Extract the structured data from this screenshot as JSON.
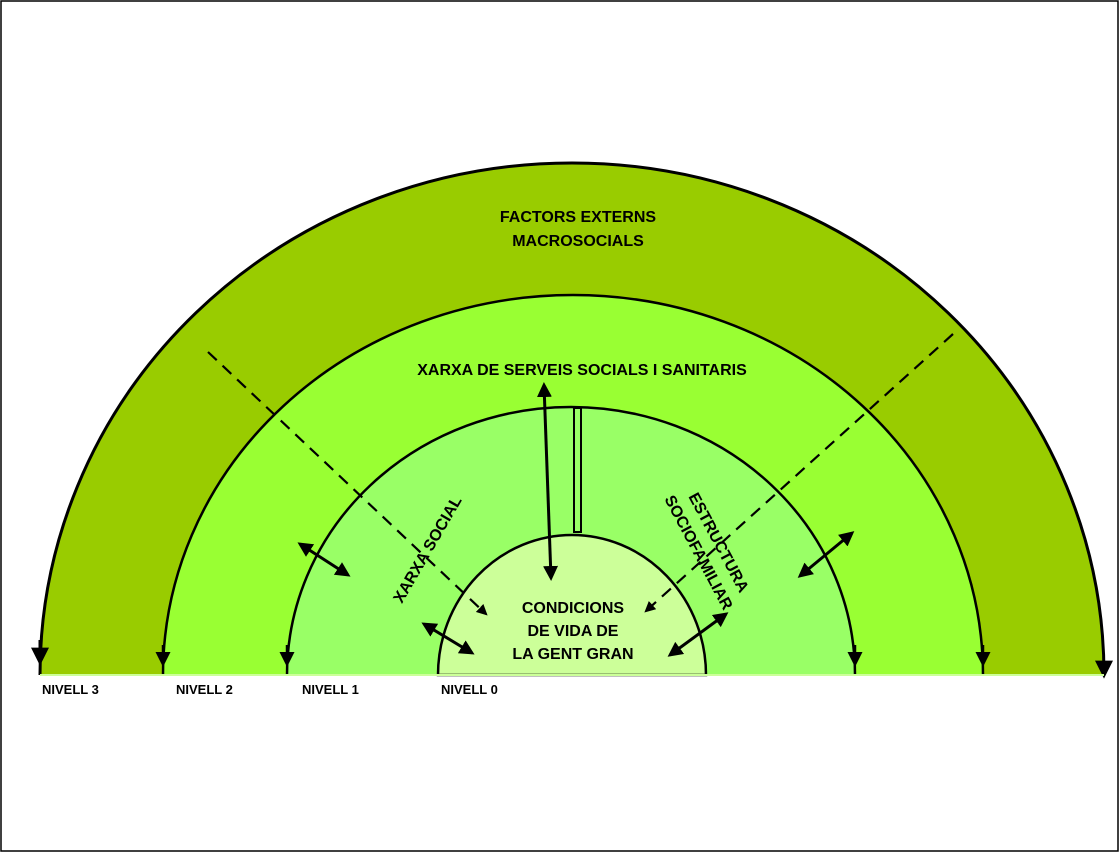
{
  "diagram": {
    "colors": {
      "ring3": "#99cc00",
      "ring2": "#99ff33",
      "ring1": "#99ff66",
      "core": "#ccff99",
      "stroke": "#000000"
    },
    "rings": {
      "ring3": {
        "line1": "FACTORS EXTERNS",
        "line2": "MACROSOCIALS"
      },
      "ring2": {
        "label": "XARXA DE SERVEIS SOCIALS I SANITARIS"
      },
      "ring1_left": {
        "label": "XARXA SOCIAL"
      },
      "ring1_right": {
        "line1": "ESTRUCTURA",
        "line2": "SOCIOFAMILIAR"
      },
      "core": {
        "line1": "CONDICIONS",
        "line2": "DE VIDA DE",
        "line3": "LA GENT GRAN"
      }
    },
    "levels": [
      "NIVELL 3",
      "NIVELL 2",
      "NIVELL 1",
      "NIVELL 0"
    ]
  }
}
